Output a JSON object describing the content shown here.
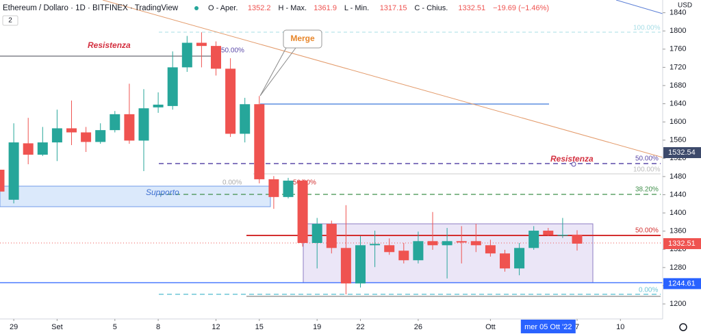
{
  "chart_data": {
    "type": "candlestick",
    "title": "Ethereum / Dollaro · 1D · BITFINEX · TradingView",
    "ohlc_labels": [
      "O - Aper.",
      "H - Max.",
      "L - Min.",
      "C - Chius."
    ],
    "ohlc_values": [
      1352.2,
      1361.9,
      1317.15,
      1332.51
    ],
    "change_label": "−19.69 (−1.46%)",
    "indicators_count": "2",
    "currency": "USD",
    "crosshair_label": "mer 05 Ott '22",
    "up_color": "#26a69a",
    "down_color": "#ef5350",
    "x": [
      "2022-08-28",
      "2022-08-29",
      "2022-08-30",
      "2022-08-31",
      "2022-09-01",
      "2022-09-02",
      "2022-09-03",
      "2022-09-04",
      "2022-09-05",
      "2022-09-06",
      "2022-09-07",
      "2022-09-08",
      "2022-09-09",
      "2022-09-10",
      "2022-09-11",
      "2022-09-12",
      "2022-09-13",
      "2022-09-14",
      "2022-09-15",
      "2022-09-16",
      "2022-09-17",
      "2022-09-18",
      "2022-09-19",
      "2022-09-20",
      "2022-09-21",
      "2022-09-22",
      "2022-09-23",
      "2022-09-24",
      "2022-09-25",
      "2022-09-26",
      "2022-09-27",
      "2022-09-28",
      "2022-09-29",
      "2022-09-30",
      "2022-10-01",
      "2022-10-02",
      "2022-10-03",
      "2022-10-04",
      "2022-10-05",
      "2022-10-06",
      "2022-10-07"
    ],
    "open": [
      1495,
      1429,
      1553,
      1528,
      1555,
      1586,
      1577,
      1556,
      1582,
      1617,
      1559,
      1632,
      1635,
      1720,
      1774,
      1767,
      1717,
      1574,
      1639,
      1474,
      1435,
      1471,
      1334,
      1376,
      1323,
      1245,
      1329,
      1329,
      1317,
      1296,
      1338,
      1329,
      1338,
      1338,
      1329,
      1311,
      1278,
      1323,
      1361,
      1350,
      1352.2
    ],
    "high": [
      1510,
      1597,
      1609,
      1589,
      1627,
      1647,
      1589,
      1597,
      1624,
      1684,
      1672,
      1665,
      1755,
      1789,
      1797,
      1777,
      1740,
      1653,
      1657,
      1481,
      1477,
      1474,
      1389,
      1383,
      1417,
      1349,
      1361,
      1344,
      1334,
      1359,
      1402,
      1367,
      1371,
      1376,
      1341,
      1319,
      1334,
      1371,
      1367,
      1389,
      1361.9
    ],
    "low": [
      1425,
      1421,
      1507,
      1525,
      1514,
      1549,
      1534,
      1552,
      1577,
      1552,
      1492,
      1620,
      1627,
      1710,
      1720,
      1702,
      1567,
      1555,
      1465,
      1409,
      1432,
      1326,
      1278,
      1311,
      1221,
      1236,
      1281,
      1308,
      1289,
      1289,
      1319,
      1256,
      1289,
      1314,
      1304,
      1271,
      1263,
      1319,
      1349,
      1345,
      1317.15
    ],
    "close": [
      1447,
      1555,
      1528,
      1555,
      1586,
      1577,
      1556,
      1582,
      1617,
      1559,
      1630,
      1638,
      1720,
      1774,
      1767,
      1717,
      1574,
      1639,
      1474,
      1435,
      1471,
      1334,
      1376,
      1323,
      1245,
      1329,
      1332,
      1314,
      1296,
      1338,
      1329,
      1338,
      1335,
      1329,
      1311,
      1278,
      1323,
      1361,
      1352,
      1352,
      1332.51
    ],
    "xticks": [
      {
        "value": "2022-08-29",
        "label": "29"
      },
      {
        "value": "2022-09-01",
        "label": "Set"
      },
      {
        "value": "2022-09-05",
        "label": "5"
      },
      {
        "value": "2022-09-08",
        "label": "8"
      },
      {
        "value": "2022-09-12",
        "label": "12"
      },
      {
        "value": "2022-09-15",
        "label": "15"
      },
      {
        "value": "2022-09-19",
        "label": "19"
      },
      {
        "value": "2022-09-22",
        "label": "22"
      },
      {
        "value": "2022-09-26",
        "label": "26"
      },
      {
        "value": "2022-10-01",
        "label": "Ott"
      },
      {
        "value": "2022-10-07",
        "label": "7"
      },
      {
        "value": "2022-10-10",
        "label": "10"
      }
    ],
    "ylim": [
      1167,
      1868
    ],
    "yticks": [
      1200,
      1240,
      1280,
      1320,
      1360,
      1400,
      1440,
      1480,
      1520,
      1560,
      1600,
      1640,
      1680,
      1720,
      1760,
      1800,
      1840
    ],
    "price_tags": [
      {
        "value": 1532.54,
        "label": "1532.54",
        "color": "#3d4a6b"
      },
      {
        "value": 1332.51,
        "label": "1332.51",
        "color": "#ef5350"
      },
      {
        "value": 1244.61,
        "label": "1244.61",
        "color": "#2962ff"
      }
    ],
    "annotations": {
      "resistance_top": "Resistenza",
      "resistance_right": "Resistenza",
      "support": "Supporto",
      "merge": "Merge",
      "fib_labels": [
        "100.00%",
        "50.00%",
        "0.00%",
        "100.00%",
        "50.00%",
        "38.20%",
        "50.00%",
        "50.00%",
        "0.00%"
      ]
    }
  }
}
